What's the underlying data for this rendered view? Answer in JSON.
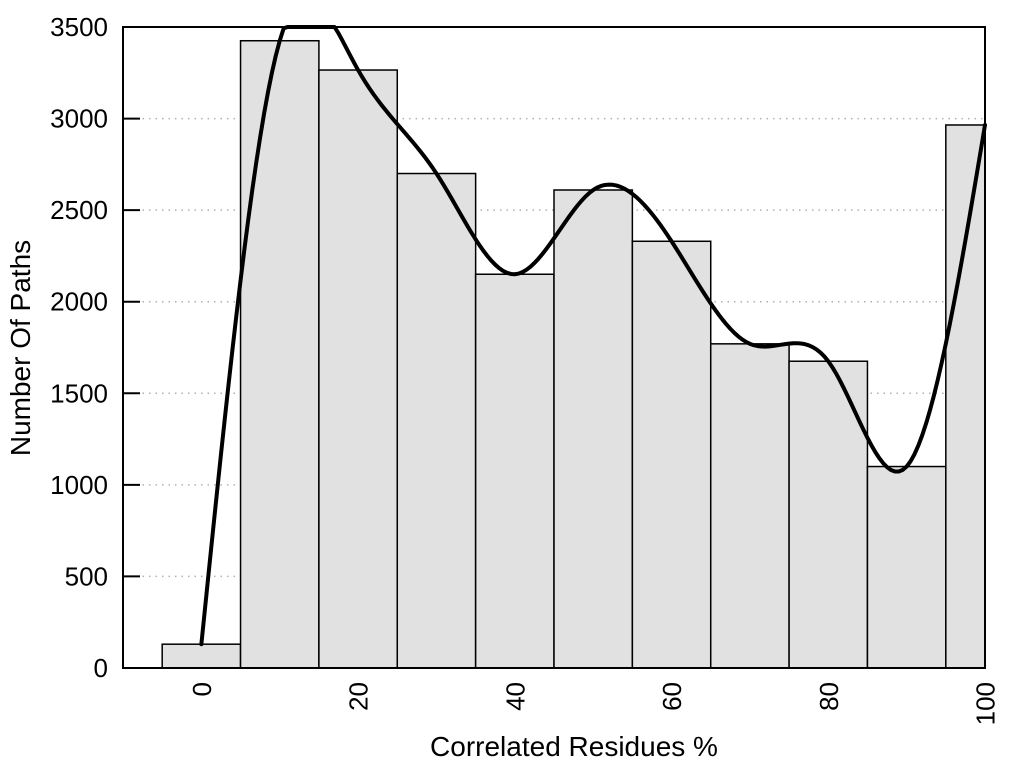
{
  "chart_data": {
    "type": "bar",
    "subtype": "histogram-with-smoothed-curve",
    "title": "",
    "xlabel": "Correlated Residues %",
    "ylabel": "Number Of Paths",
    "xlim": [
      -10,
      100
    ],
    "ylim": [
      0,
      3500
    ],
    "xticks": [
      0,
      20,
      40,
      60,
      80,
      100
    ],
    "yticks": [
      0,
      500,
      1000,
      1500,
      2000,
      2500,
      3000,
      3500
    ],
    "xtick_rotation_deg": -90,
    "grid": {
      "horizontal": true,
      "vertical": false,
      "style": "dotted"
    },
    "legend": {
      "visible": false
    },
    "histogram": {
      "bin_width": 10,
      "bin_centers": [
        0,
        10,
        20,
        30,
        40,
        50,
        60,
        70,
        80,
        90,
        100
      ],
      "counts": [
        130,
        3425,
        3265,
        2700,
        2150,
        2610,
        2330,
        1770,
        1675,
        1100,
        2965
      ]
    },
    "curve": {
      "name": "smoothed-count-curve",
      "interpolation": "natural-cubic-spline",
      "points": [
        [
          0,
          130
        ],
        [
          10,
          3425
        ],
        [
          20,
          3265
        ],
        [
          30,
          2700
        ],
        [
          40,
          2150
        ],
        [
          50,
          2610
        ],
        [
          60,
          2330
        ],
        [
          70,
          1770
        ],
        [
          80,
          1675
        ],
        [
          90,
          1100
        ],
        [
          100,
          2965
        ]
      ]
    },
    "colors": {
      "background": "#ffffff",
      "bar_fill": "#e1e1e1",
      "bar_border": "#000000",
      "curve": "#000000",
      "grid": "#b0b0b0",
      "frame": "#000000",
      "text": "#000000"
    }
  }
}
